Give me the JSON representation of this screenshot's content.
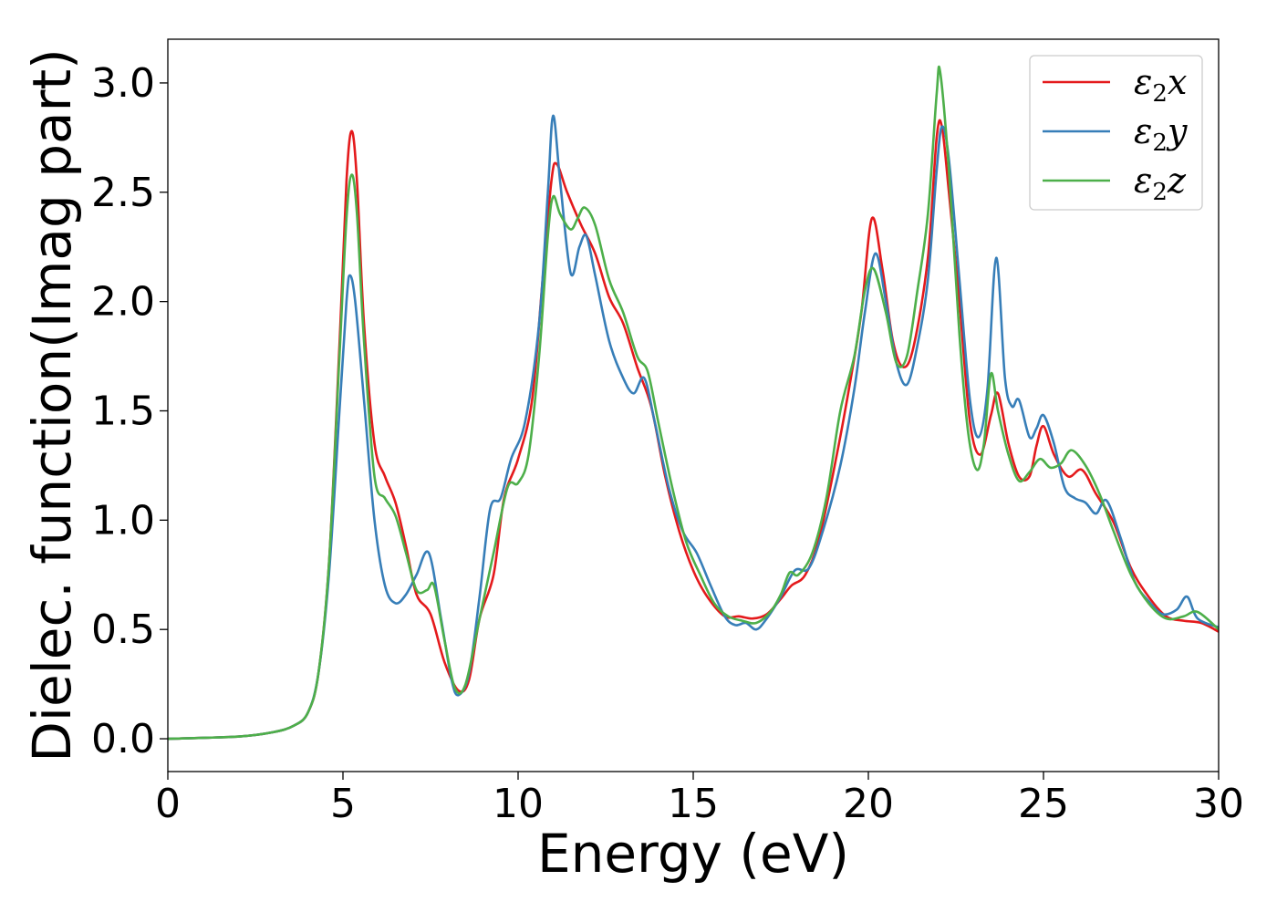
{
  "chart_data": {
    "type": "line",
    "xlabel": "Energy (eV)",
    "ylabel": "Dielec. function(Imag part)",
    "xlim": [
      0,
      30
    ],
    "ylim": [
      -0.15,
      3.2
    ],
    "xticks": [
      0,
      5,
      10,
      15,
      20,
      25,
      30
    ],
    "xtick_labels": [
      "0",
      "5",
      "10",
      "15",
      "20",
      "25",
      "30"
    ],
    "yticks": [
      0.0,
      0.5,
      1.0,
      1.5,
      2.0,
      2.5,
      3.0
    ],
    "ytick_labels": [
      "0.0",
      "0.5",
      "1.0",
      "1.5",
      "2.0",
      "2.5",
      "3.0"
    ],
    "grid": false,
    "legend_position": "top-right",
    "series": [
      {
        "name": "ε2x",
        "legend": {
          "base": "ε",
          "sub": "2",
          "var": "x"
        },
        "color": "#e41a1c",
        "points": [
          [
            0,
            0
          ],
          [
            2,
            0.01
          ],
          [
            3,
            0.03
          ],
          [
            3.6,
            0.06
          ],
          [
            4.0,
            0.12
          ],
          [
            4.3,
            0.3
          ],
          [
            4.6,
            0.8
          ],
          [
            4.9,
            1.8
          ],
          [
            5.1,
            2.55
          ],
          [
            5.25,
            2.78
          ],
          [
            5.4,
            2.55
          ],
          [
            5.6,
            1.9
          ],
          [
            5.9,
            1.35
          ],
          [
            6.2,
            1.2
          ],
          [
            6.5,
            1.08
          ],
          [
            6.8,
            0.88
          ],
          [
            7.1,
            0.66
          ],
          [
            7.5,
            0.57
          ],
          [
            7.9,
            0.35
          ],
          [
            8.3,
            0.22
          ],
          [
            8.6,
            0.27
          ],
          [
            8.9,
            0.55
          ],
          [
            9.3,
            0.75
          ],
          [
            9.6,
            1.1
          ],
          [
            10.0,
            1.28
          ],
          [
            10.4,
            1.55
          ],
          [
            10.7,
            2.1
          ],
          [
            10.95,
            2.55
          ],
          [
            11.1,
            2.63
          ],
          [
            11.4,
            2.5
          ],
          [
            11.8,
            2.35
          ],
          [
            12.2,
            2.22
          ],
          [
            12.6,
            2.02
          ],
          [
            13.0,
            1.9
          ],
          [
            13.4,
            1.7
          ],
          [
            13.8,
            1.52
          ],
          [
            14.2,
            1.2
          ],
          [
            14.6,
            0.95
          ],
          [
            15.0,
            0.77
          ],
          [
            15.4,
            0.65
          ],
          [
            15.9,
            0.56
          ],
          [
            16.3,
            0.56
          ],
          [
            16.7,
            0.55
          ],
          [
            17.1,
            0.57
          ],
          [
            17.5,
            0.64
          ],
          [
            17.8,
            0.7
          ],
          [
            18.2,
            0.75
          ],
          [
            18.6,
            0.92
          ],
          [
            19.1,
            1.3
          ],
          [
            19.5,
            1.65
          ],
          [
            19.8,
            1.95
          ],
          [
            20.1,
            2.38
          ],
          [
            20.4,
            2.15
          ],
          [
            20.7,
            1.82
          ],
          [
            21.0,
            1.7
          ],
          [
            21.3,
            1.8
          ],
          [
            21.7,
            2.2
          ],
          [
            21.95,
            2.75
          ],
          [
            22.1,
            2.8
          ],
          [
            22.3,
            2.5
          ],
          [
            22.6,
            2.0
          ],
          [
            22.9,
            1.45
          ],
          [
            23.2,
            1.3
          ],
          [
            23.5,
            1.48
          ],
          [
            23.7,
            1.58
          ],
          [
            24.0,
            1.35
          ],
          [
            24.3,
            1.2
          ],
          [
            24.6,
            1.2
          ],
          [
            24.8,
            1.34
          ],
          [
            25.0,
            1.43
          ],
          [
            25.3,
            1.3
          ],
          [
            25.7,
            1.2
          ],
          [
            26.1,
            1.23
          ],
          [
            26.5,
            1.12
          ],
          [
            27.0,
            0.99
          ],
          [
            27.5,
            0.78
          ],
          [
            28.0,
            0.65
          ],
          [
            28.5,
            0.56
          ],
          [
            29.0,
            0.54
          ],
          [
            29.5,
            0.53
          ],
          [
            30.0,
            0.49
          ]
        ]
      },
      {
        "name": "ε2y",
        "legend": {
          "base": "ε",
          "sub": "2",
          "var": "y"
        },
        "color": "#377eb8",
        "points": [
          [
            0,
            0
          ],
          [
            2,
            0.01
          ],
          [
            3,
            0.03
          ],
          [
            3.6,
            0.06
          ],
          [
            4.0,
            0.12
          ],
          [
            4.3,
            0.3
          ],
          [
            4.6,
            0.75
          ],
          [
            4.9,
            1.5
          ],
          [
            5.1,
            2.0
          ],
          [
            5.2,
            2.12
          ],
          [
            5.35,
            2.0
          ],
          [
            5.6,
            1.55
          ],
          [
            5.9,
            1.0
          ],
          [
            6.2,
            0.7
          ],
          [
            6.5,
            0.62
          ],
          [
            6.8,
            0.66
          ],
          [
            7.1,
            0.75
          ],
          [
            7.45,
            0.85
          ],
          [
            7.8,
            0.55
          ],
          [
            8.1,
            0.27
          ],
          [
            8.3,
            0.2
          ],
          [
            8.6,
            0.3
          ],
          [
            8.9,
            0.65
          ],
          [
            9.2,
            1.05
          ],
          [
            9.5,
            1.1
          ],
          [
            9.8,
            1.28
          ],
          [
            10.2,
            1.45
          ],
          [
            10.6,
            1.9
          ],
          [
            10.85,
            2.5
          ],
          [
            11.0,
            2.85
          ],
          [
            11.2,
            2.55
          ],
          [
            11.5,
            2.13
          ],
          [
            11.75,
            2.25
          ],
          [
            11.95,
            2.3
          ],
          [
            12.2,
            2.12
          ],
          [
            12.6,
            1.82
          ],
          [
            13.0,
            1.65
          ],
          [
            13.3,
            1.58
          ],
          [
            13.6,
            1.65
          ],
          [
            13.9,
            1.45
          ],
          [
            14.3,
            1.15
          ],
          [
            14.7,
            0.95
          ],
          [
            15.1,
            0.85
          ],
          [
            15.5,
            0.7
          ],
          [
            15.9,
            0.56
          ],
          [
            16.2,
            0.52
          ],
          [
            16.5,
            0.53
          ],
          [
            16.8,
            0.5
          ],
          [
            17.1,
            0.55
          ],
          [
            17.5,
            0.65
          ],
          [
            17.9,
            0.77
          ],
          [
            18.3,
            0.78
          ],
          [
            18.7,
            0.95
          ],
          [
            19.2,
            1.25
          ],
          [
            19.6,
            1.6
          ],
          [
            19.9,
            1.95
          ],
          [
            20.2,
            2.22
          ],
          [
            20.5,
            2.0
          ],
          [
            20.8,
            1.72
          ],
          [
            21.1,
            1.62
          ],
          [
            21.4,
            1.8
          ],
          [
            21.7,
            2.1
          ],
          [
            21.95,
            2.6
          ],
          [
            22.1,
            2.8
          ],
          [
            22.3,
            2.65
          ],
          [
            22.6,
            2.1
          ],
          [
            22.9,
            1.55
          ],
          [
            23.15,
            1.38
          ],
          [
            23.4,
            1.6
          ],
          [
            23.65,
            2.2
          ],
          [
            23.9,
            1.65
          ],
          [
            24.1,
            1.52
          ],
          [
            24.3,
            1.55
          ],
          [
            24.6,
            1.38
          ],
          [
            24.8,
            1.42
          ],
          [
            25.0,
            1.48
          ],
          [
            25.3,
            1.35
          ],
          [
            25.6,
            1.15
          ],
          [
            25.9,
            1.1
          ],
          [
            26.2,
            1.08
          ],
          [
            26.5,
            1.03
          ],
          [
            26.8,
            1.09
          ],
          [
            27.2,
            0.92
          ],
          [
            27.6,
            0.72
          ],
          [
            28.0,
            0.63
          ],
          [
            28.4,
            0.57
          ],
          [
            28.8,
            0.59
          ],
          [
            29.1,
            0.65
          ],
          [
            29.4,
            0.55
          ],
          [
            30.0,
            0.51
          ]
        ]
      },
      {
        "name": "ε2z",
        "legend": {
          "base": "ε",
          "sub": "2",
          "var": "z"
        },
        "color": "#4daf4a",
        "points": [
          [
            0,
            0
          ],
          [
            2,
            0.01
          ],
          [
            3,
            0.03
          ],
          [
            3.6,
            0.06
          ],
          [
            4.0,
            0.12
          ],
          [
            4.3,
            0.3
          ],
          [
            4.6,
            0.8
          ],
          [
            4.9,
            1.75
          ],
          [
            5.1,
            2.38
          ],
          [
            5.25,
            2.58
          ],
          [
            5.4,
            2.4
          ],
          [
            5.6,
            1.82
          ],
          [
            5.9,
            1.2
          ],
          [
            6.2,
            1.1
          ],
          [
            6.5,
            1.02
          ],
          [
            6.8,
            0.85
          ],
          [
            7.1,
            0.68
          ],
          [
            7.4,
            0.68
          ],
          [
            7.6,
            0.7
          ],
          [
            7.9,
            0.45
          ],
          [
            8.2,
            0.23
          ],
          [
            8.5,
            0.25
          ],
          [
            8.9,
            0.55
          ],
          [
            9.3,
            0.85
          ],
          [
            9.7,
            1.15
          ],
          [
            10.0,
            1.17
          ],
          [
            10.3,
            1.3
          ],
          [
            10.6,
            1.75
          ],
          [
            10.85,
            2.3
          ],
          [
            11.0,
            2.48
          ],
          [
            11.2,
            2.4
          ],
          [
            11.5,
            2.33
          ],
          [
            11.7,
            2.38
          ],
          [
            11.9,
            2.43
          ],
          [
            12.2,
            2.35
          ],
          [
            12.6,
            2.1
          ],
          [
            13.0,
            1.95
          ],
          [
            13.4,
            1.75
          ],
          [
            13.7,
            1.68
          ],
          [
            14.0,
            1.45
          ],
          [
            14.4,
            1.15
          ],
          [
            14.8,
            0.9
          ],
          [
            15.2,
            0.75
          ],
          [
            15.6,
            0.62
          ],
          [
            16.0,
            0.56
          ],
          [
            16.4,
            0.54
          ],
          [
            16.8,
            0.53
          ],
          [
            17.2,
            0.58
          ],
          [
            17.5,
            0.66
          ],
          [
            17.75,
            0.76
          ],
          [
            18.0,
            0.75
          ],
          [
            18.4,
            0.85
          ],
          [
            18.8,
            1.1
          ],
          [
            19.2,
            1.5
          ],
          [
            19.6,
            1.75
          ],
          [
            19.9,
            2.05
          ],
          [
            20.15,
            2.15
          ],
          [
            20.5,
            1.95
          ],
          [
            20.8,
            1.72
          ],
          [
            21.1,
            1.75
          ],
          [
            21.4,
            2.05
          ],
          [
            21.7,
            2.4
          ],
          [
            21.95,
            2.95
          ],
          [
            22.05,
            3.05
          ],
          [
            22.3,
            2.6
          ],
          [
            22.6,
            1.85
          ],
          [
            22.85,
            1.4
          ],
          [
            23.1,
            1.23
          ],
          [
            23.3,
            1.35
          ],
          [
            23.5,
            1.67
          ],
          [
            23.7,
            1.5
          ],
          [
            24.0,
            1.3
          ],
          [
            24.3,
            1.18
          ],
          [
            24.6,
            1.22
          ],
          [
            24.9,
            1.28
          ],
          [
            25.2,
            1.24
          ],
          [
            25.5,
            1.26
          ],
          [
            25.8,
            1.32
          ],
          [
            26.2,
            1.25
          ],
          [
            26.6,
            1.12
          ],
          [
            27.0,
            0.95
          ],
          [
            27.5,
            0.75
          ],
          [
            28.0,
            0.62
          ],
          [
            28.5,
            0.55
          ],
          [
            29.0,
            0.56
          ],
          [
            29.4,
            0.58
          ],
          [
            30.0,
            0.5
          ]
        ]
      }
    ]
  }
}
